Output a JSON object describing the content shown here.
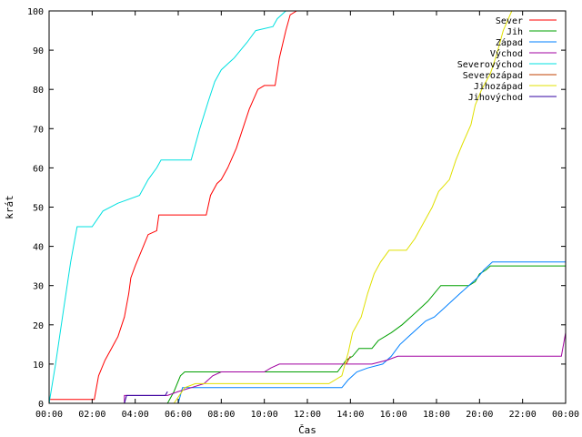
{
  "chart_data": {
    "type": "line",
    "title": "",
    "xlabel": "Čas",
    "ylabel": "krát",
    "xlim": [
      0,
      24
    ],
    "ylim": [
      0,
      100
    ],
    "xtick_labels": [
      "00:00",
      "02:00",
      "04:00",
      "06:00",
      "08:00",
      "10:00",
      "12:00",
      "14:00",
      "16:00",
      "18:00",
      "20:00",
      "22:00",
      "00:00"
    ],
    "ytick_values": [
      0,
      10,
      20,
      30,
      40,
      50,
      60,
      70,
      80,
      90,
      100
    ],
    "legend_position": "top-right",
    "grid": false,
    "series": [
      {
        "name": "Sever",
        "color": "#ff0000",
        "points": [
          [
            0,
            1
          ],
          [
            2.1,
            1
          ],
          [
            2.3,
            7
          ],
          [
            2.6,
            11
          ],
          [
            2.9,
            14
          ],
          [
            3.2,
            17
          ],
          [
            3.5,
            22
          ],
          [
            3.7,
            28
          ],
          [
            3.8,
            32
          ],
          [
            4,
            35
          ],
          [
            4.3,
            39
          ],
          [
            4.6,
            43
          ],
          [
            5,
            44
          ],
          [
            5.1,
            48
          ],
          [
            7.3,
            48
          ],
          [
            7.5,
            53
          ],
          [
            7.8,
            56
          ],
          [
            8,
            57
          ],
          [
            8.3,
            60
          ],
          [
            8.7,
            65
          ],
          [
            9,
            70
          ],
          [
            9.3,
            75
          ],
          [
            9.7,
            80
          ],
          [
            10,
            81
          ],
          [
            10.5,
            81
          ],
          [
            10.7,
            88
          ],
          [
            11,
            95
          ],
          [
            11.2,
            99
          ],
          [
            11.5,
            100
          ]
        ]
      },
      {
        "name": "Jih",
        "color": "#00a000",
        "points": [
          [
            3.5,
            0
          ],
          [
            5.5,
            0
          ],
          [
            5.8,
            3
          ],
          [
            6.1,
            7
          ],
          [
            6.3,
            8
          ],
          [
            13.4,
            8
          ],
          [
            13.8,
            11
          ],
          [
            14.1,
            12
          ],
          [
            14.4,
            14
          ],
          [
            15,
            14
          ],
          [
            15.3,
            16
          ],
          [
            15.9,
            18
          ],
          [
            16.4,
            20
          ],
          [
            16.8,
            22
          ],
          [
            17.2,
            24
          ],
          [
            17.6,
            26
          ],
          [
            17.9,
            28
          ],
          [
            18.2,
            30
          ],
          [
            19.5,
            30
          ],
          [
            19.8,
            31
          ],
          [
            20,
            33
          ],
          [
            20.3,
            34
          ],
          [
            20.5,
            35
          ],
          [
            24,
            35
          ]
        ]
      },
      {
        "name": "Západ",
        "color": "#0080ff",
        "points": [
          [
            5.5,
            0
          ],
          [
            6,
            0
          ],
          [
            6.2,
            4
          ],
          [
            13.6,
            4
          ],
          [
            13.9,
            6
          ],
          [
            14.3,
            8
          ],
          [
            14.8,
            9
          ],
          [
            15.5,
            10
          ],
          [
            15.9,
            12
          ],
          [
            16.3,
            15
          ],
          [
            16.7,
            17
          ],
          [
            17.1,
            19
          ],
          [
            17.5,
            21
          ],
          [
            17.9,
            22
          ],
          [
            18.3,
            24
          ],
          [
            18.7,
            26
          ],
          [
            19.1,
            28
          ],
          [
            19.5,
            30
          ],
          [
            19.9,
            32
          ],
          [
            20.2,
            34
          ],
          [
            20.6,
            36
          ],
          [
            24,
            36
          ]
        ]
      },
      {
        "name": "Východ",
        "color": "#a000a0",
        "points": [
          [
            3.5,
            0
          ],
          [
            3.5,
            2
          ],
          [
            5.5,
            2
          ],
          [
            6,
            3
          ],
          [
            6.6,
            4
          ],
          [
            7.2,
            5
          ],
          [
            7.6,
            7
          ],
          [
            8,
            8
          ],
          [
            10,
            8
          ],
          [
            10.3,
            9
          ],
          [
            10.7,
            10
          ],
          [
            15,
            10
          ],
          [
            15.7,
            11
          ],
          [
            16.2,
            12
          ],
          [
            23.8,
            12
          ],
          [
            24,
            18
          ]
        ]
      },
      {
        "name": "Severovýchod",
        "color": "#00e0e0",
        "points": [
          [
            0,
            0
          ],
          [
            0.3,
            10
          ],
          [
            0.7,
            25
          ],
          [
            1,
            36
          ],
          [
            1.2,
            42
          ],
          [
            1.3,
            45
          ],
          [
            2,
            45
          ],
          [
            2.5,
            49
          ],
          [
            3.2,
            51
          ],
          [
            4.2,
            53
          ],
          [
            4.6,
            57
          ],
          [
            5,
            60
          ],
          [
            5.2,
            62
          ],
          [
            6.6,
            62
          ],
          [
            7,
            70
          ],
          [
            7.4,
            77
          ],
          [
            7.7,
            82
          ],
          [
            8,
            85
          ],
          [
            8.6,
            88
          ],
          [
            9.2,
            92
          ],
          [
            9.6,
            95
          ],
          [
            10.4,
            96
          ],
          [
            10.6,
            98
          ],
          [
            11,
            100
          ]
        ]
      },
      {
        "name": "Severozápad",
        "color": "#c04000",
        "points": [
          [
            13.8,
            10
          ],
          [
            14,
            12
          ]
        ]
      },
      {
        "name": "Jihozápad",
        "color": "#e0e000",
        "points": [
          [
            5.8,
            0
          ],
          [
            6.3,
            4
          ],
          [
            6.8,
            5
          ],
          [
            13,
            5
          ],
          [
            13.6,
            7
          ],
          [
            13.9,
            13
          ],
          [
            14.1,
            18
          ],
          [
            14.5,
            22
          ],
          [
            14.8,
            28
          ],
          [
            15.1,
            33
          ],
          [
            15.4,
            36
          ],
          [
            15.8,
            39
          ],
          [
            16.6,
            39
          ],
          [
            17,
            42
          ],
          [
            17.4,
            46
          ],
          [
            17.8,
            50
          ],
          [
            18.1,
            54
          ],
          [
            18.6,
            57
          ],
          [
            18.9,
            62
          ],
          [
            19.2,
            66
          ],
          [
            19.6,
            71
          ],
          [
            19.8,
            76
          ],
          [
            20.1,
            80
          ],
          [
            20.5,
            84
          ],
          [
            20.8,
            89
          ],
          [
            21.1,
            95
          ],
          [
            21.5,
            100
          ]
        ]
      },
      {
        "name": "Jihovýchod",
        "color": "#3000a0",
        "points": [
          [
            3.5,
            0
          ],
          [
            3.6,
            2
          ],
          [
            5.4,
            2
          ],
          [
            5.5,
            3
          ]
        ]
      }
    ]
  }
}
